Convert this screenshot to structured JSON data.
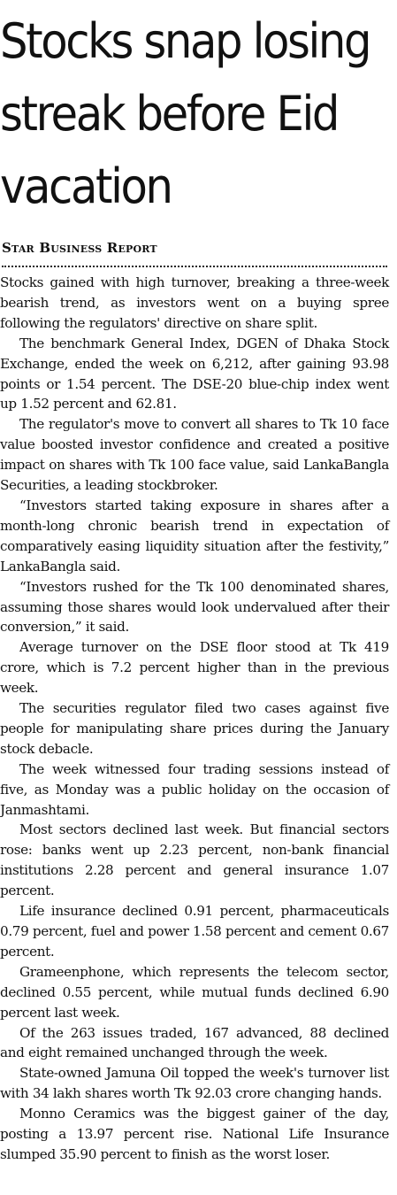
{
  "headline": "Stocks snap losing streak before Eid vacation",
  "byline": "Star Business Report",
  "paragraphs": [
    "Stocks gained with high turnover, breaking a three-week bearish trend, as investors went on a buying spree following the regulators' directive on share split.",
    "The benchmark General Index, DGEN of Dhaka Stock Exchange, ended the week on 6,212, after gaining 93.98 points or 1.54 percent. The DSE-20 blue-chip index went up 1.52 percent and 62.81.",
    "The regulator's move to convert all shares to Tk 10 face value boosted investor confidence and created a positive impact on shares with Tk 100 face value, said LankaBangla Securities, a leading stockbroker.",
    "“Investors started taking exposure in shares after a month-long chronic bearish trend in expectation of comparatively easing liquidity situation after the festivity,” LankaBangla said.",
    "“Investors rushed for the Tk 100 denominated shares, assuming those shares would look undervalued after their conversion,” it said.",
    "Average turnover on the DSE floor stood at Tk 419 crore, which is 7.2 percent higher than in the previous week.",
    "The securities regulator filed two cases against five people for manipulating share prices during the January stock debacle.",
    "The week witnessed four trading sessions instead of five, as Monday was a public holiday on the occasion of Janmashtami.",
    "Most sectors declined last week. But financial sectors rose: banks went up 2.23 percent, non-bank financial institutions 2.28 percent and general insurance 1.07 percent.",
    "Life insurance declined 0.91 percent, pharmaceuticals 0.79 percent, fuel and power 1.58 percent and cement 0.67 percent.",
    "Grameenphone, which represents the telecom sector, declined 0.55 percent, while mutual funds declined 6.90 percent last week.",
    "Of the 263 issues traded, 167 advanced, 88 declined and eight remained unchanged through the week.",
    "State-owned Jamuna Oil topped the week's turnover list with 34 lakh shares worth Tk 92.03 crore changing hands.",
    "Monno Ceramics was the biggest gainer of the day, posting a 13.97 percent rise. National Life Insurance slumped 35.90 percent to finish as the worst loser."
  ]
}
